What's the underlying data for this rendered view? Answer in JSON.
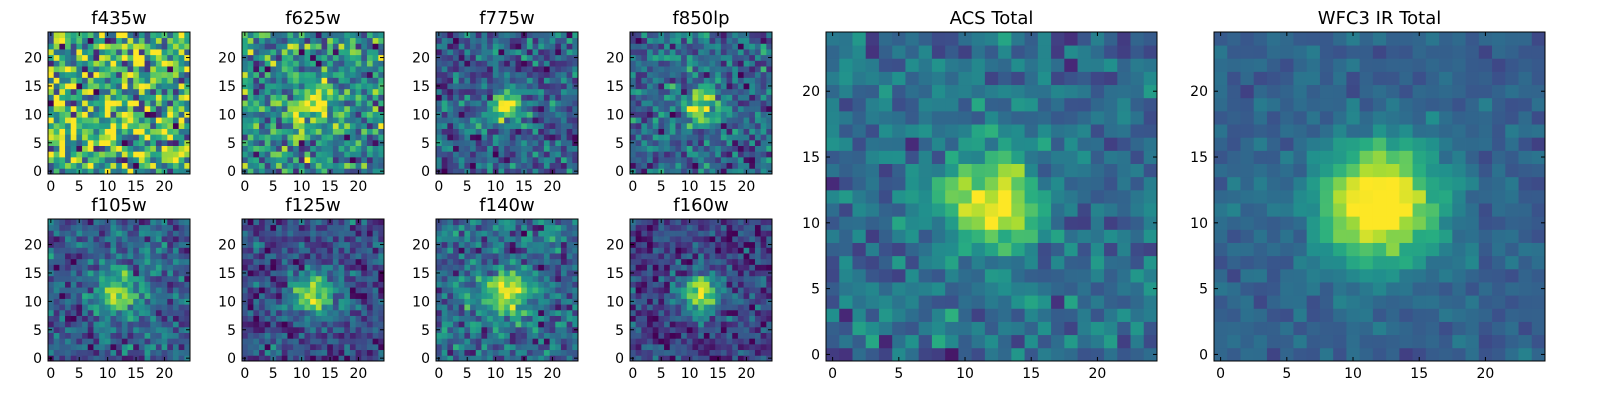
{
  "chart_data": [
    {
      "type": "heatmap",
      "title": "f435w",
      "xticks": [
        0,
        5,
        10,
        15,
        20
      ],
      "yticks": [
        0,
        5,
        10,
        15,
        20
      ],
      "xlim": [
        0,
        24
      ],
      "ylim": [
        0,
        24
      ],
      "grid_size": 25,
      "colormap": "viridis",
      "source_peak": [
        12,
        11.5
      ]
    },
    {
      "type": "heatmap",
      "title": "f625w",
      "xticks": [
        0,
        5,
        10,
        15,
        20
      ],
      "yticks": [
        0,
        5,
        10,
        15,
        20
      ],
      "xlim": [
        0,
        24
      ],
      "ylim": [
        0,
        24
      ],
      "grid_size": 25,
      "colormap": "viridis",
      "source_peak": [
        12,
        11.5
      ]
    },
    {
      "type": "heatmap",
      "title": "f775w",
      "xticks": [
        0,
        5,
        10,
        15,
        20
      ],
      "yticks": [
        0,
        5,
        10,
        15,
        20
      ],
      "xlim": [
        0,
        24
      ],
      "ylim": [
        0,
        24
      ],
      "grid_size": 25,
      "colormap": "viridis",
      "source_peak": [
        12,
        11.5
      ]
    },
    {
      "type": "heatmap",
      "title": "f850lp",
      "xticks": [
        0,
        5,
        10,
        15,
        20
      ],
      "yticks": [
        0,
        5,
        10,
        15,
        20
      ],
      "xlim": [
        0,
        24
      ],
      "ylim": [
        0,
        24
      ],
      "grid_size": 25,
      "colormap": "viridis",
      "source_peak": [
        12,
        11.5
      ]
    },
    {
      "type": "heatmap",
      "title": "f105w",
      "xticks": [
        0,
        5,
        10,
        15,
        20
      ],
      "yticks": [
        0,
        5,
        10,
        15,
        20
      ],
      "xlim": [
        0,
        24
      ],
      "ylim": [
        0,
        24
      ],
      "grid_size": 25,
      "colormap": "viridis",
      "source_peak": [
        12,
        11.5
      ]
    },
    {
      "type": "heatmap",
      "title": "f125w",
      "xticks": [
        0,
        5,
        10,
        15,
        20
      ],
      "yticks": [
        0,
        5,
        10,
        15,
        20
      ],
      "xlim": [
        0,
        24
      ],
      "ylim": [
        0,
        24
      ],
      "grid_size": 25,
      "colormap": "viridis",
      "source_peak": [
        12,
        11.5
      ]
    },
    {
      "type": "heatmap",
      "title": "f140w",
      "xticks": [
        0,
        5,
        10,
        15,
        20
      ],
      "yticks": [
        0,
        5,
        10,
        15,
        20
      ],
      "xlim": [
        0,
        24
      ],
      "ylim": [
        0,
        24
      ],
      "grid_size": 25,
      "colormap": "viridis",
      "source_peak": [
        12,
        11.5
      ]
    },
    {
      "type": "heatmap",
      "title": "f160w",
      "xticks": [
        0,
        5,
        10,
        15,
        20
      ],
      "yticks": [
        0,
        5,
        10,
        15,
        20
      ],
      "xlim": [
        0,
        24
      ],
      "ylim": [
        0,
        24
      ],
      "grid_size": 25,
      "colormap": "viridis",
      "source_peak": [
        12,
        11.5
      ]
    },
    {
      "type": "heatmap",
      "title": "ACS Total",
      "xticks": [
        0,
        5,
        10,
        15,
        20
      ],
      "yticks": [
        0,
        5,
        10,
        15,
        20
      ],
      "xlim": [
        0,
        24
      ],
      "ylim": [
        0,
        24
      ],
      "grid_size": 25,
      "colormap": "viridis",
      "source_peak": [
        12,
        11.5
      ]
    },
    {
      "type": "heatmap",
      "title": "WFC3 IR Total",
      "xticks": [
        0,
        5,
        10,
        15,
        20
      ],
      "yticks": [
        0,
        5,
        10,
        15,
        20
      ],
      "xlim": [
        0,
        24
      ],
      "ylim": [
        0,
        24
      ],
      "grid_size": 25,
      "colormap": "viridis",
      "source_peak": [
        12,
        11.5
      ]
    }
  ]
}
